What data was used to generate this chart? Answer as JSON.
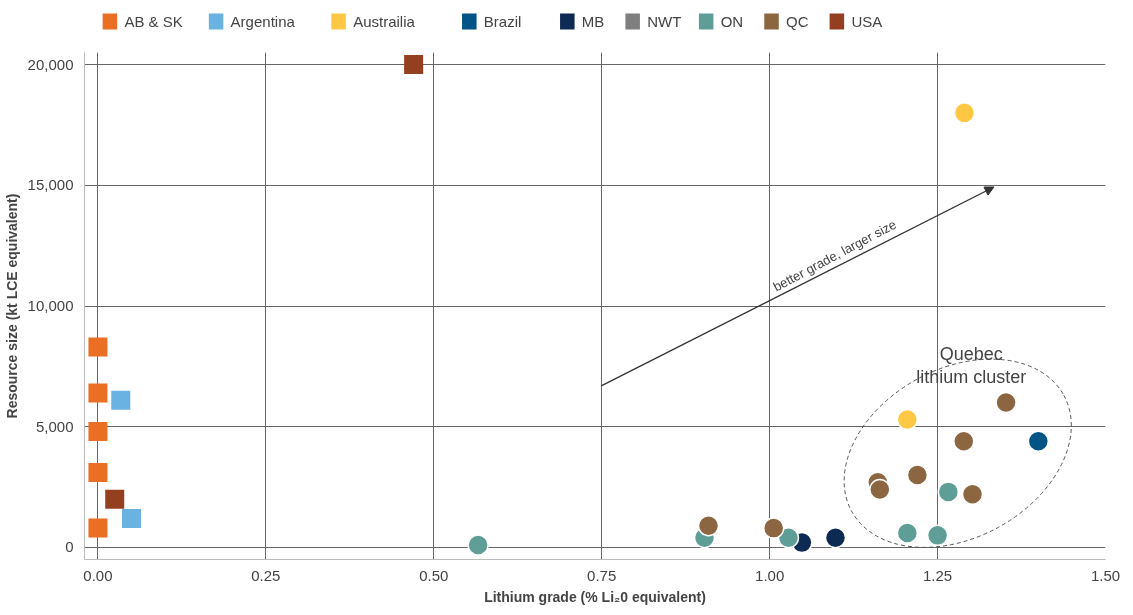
{
  "chart_data": {
    "type": "scatter",
    "xlabel": "Lithium grade (% Li₂0 equivalent)",
    "ylabel": "Resource size (kt LCE equivalent)",
    "xlim": [
      -0.02,
      1.5
    ],
    "ylim": [
      -500,
      20500
    ],
    "xticks": [
      {
        "value": 0,
        "label": "0.00"
      },
      {
        "value": 0.25,
        "label": "0.25"
      },
      {
        "value": 0.5,
        "label": "0.50"
      },
      {
        "value": 0.75,
        "label": "0.75"
      },
      {
        "value": 1,
        "label": "1.00"
      },
      {
        "value": 1.25,
        "label": "1.25"
      },
      {
        "value": 1.5,
        "label": "1.50"
      }
    ],
    "yticks": [
      0,
      {
        "value": 5000,
        "label": "5,000"
      },
      {
        "value": 10000,
        "label": "10,000"
      },
      {
        "value": 15000,
        "label": "15,000"
      },
      {
        "value": 20000,
        "label": "20,000"
      }
    ],
    "grid": true,
    "legend": "top",
    "series": [
      {
        "name": "AB & SK",
        "color": "#ea6f24",
        "marker": "square",
        "x": [
          0.0,
          0.0,
          0.0,
          0.0,
          0.0
        ],
        "values": [
          8300,
          6400,
          4800,
          3100,
          800
        ]
      },
      {
        "name": "Argentina",
        "color": "#6ab2e2",
        "marker": "square",
        "x": [
          0.034,
          0.05
        ],
        "values": [
          6100,
          1200
        ]
      },
      {
        "name": "Austrailia",
        "color": "#fec844",
        "marker": "circle",
        "x": [
          1.29,
          1.205
        ],
        "values": [
          18000,
          5300
        ]
      },
      {
        "name": "Brazil",
        "color": "#005486",
        "marker": "circle",
        "x": [
          1.4
        ],
        "values": [
          4400
        ]
      },
      {
        "name": "MB",
        "color": "#0d2a52",
        "marker": "circle",
        "x": [
          1.048,
          1.098
        ],
        "values": [
          200,
          400
        ]
      },
      {
        "name": "NWT",
        "color": "#7f7f7f",
        "marker": "circle"
      },
      {
        "name": "ON",
        "color": "#5e9e96",
        "marker": "circle",
        "x": [
          0.566,
          0.903,
          1.028,
          1.205,
          1.25,
          1.266
        ],
        "values": [
          100,
          400,
          400,
          600,
          500,
          2300
        ]
      },
      {
        "name": "QC",
        "color": "#8b6640",
        "marker": "circle",
        "x": [
          0.909,
          1.006,
          1.161,
          1.164,
          1.22,
          1.289,
          1.302,
          1.352
        ],
        "values": [
          900,
          800,
          2700,
          2400,
          3000,
          4400,
          2200,
          6000
        ]
      },
      {
        "name": "USA",
        "color": "#943f20",
        "marker": "square",
        "x": [
          0.025,
          0.47
        ],
        "values": [
          2000,
          20000
        ]
      }
    ],
    "annotations": [
      "better grade, larger size",
      "Quebec lithium cluster"
    ]
  }
}
